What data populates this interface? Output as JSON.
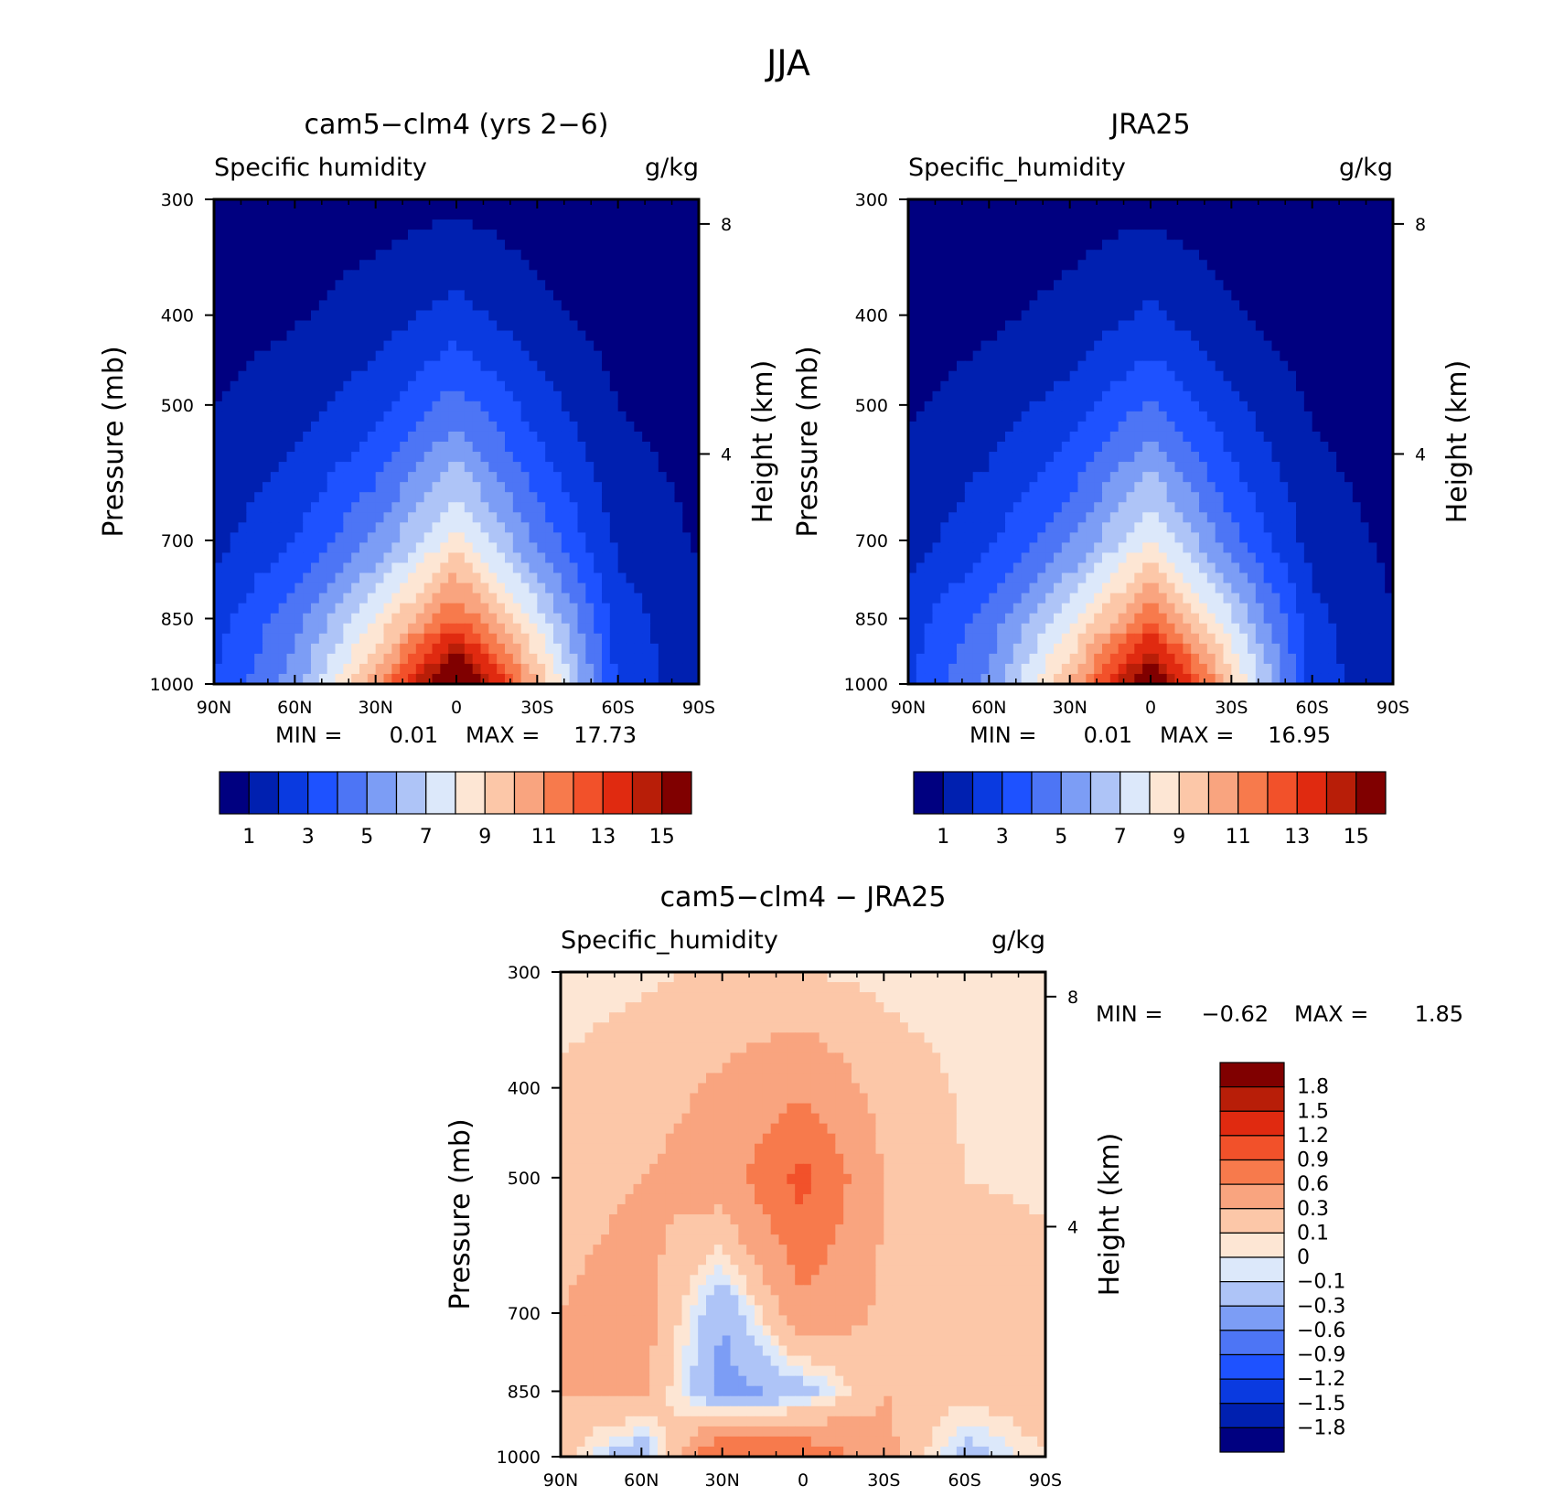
{
  "figure_title": "JJA",
  "chart_data": [
    {
      "type": "heatmap",
      "title": "cam5-clm4 (yrs 2-6)",
      "variable": "Specific humidity",
      "units": "g/kg",
      "ylabel": "Pressure (mb)",
      "right_label": "Height (km)",
      "x_ticks": [
        "90N",
        "60N",
        "30N",
        "0",
        "30S",
        "60S",
        "90S"
      ],
      "y_ticks": [
        "300",
        "400",
        "500",
        "700",
        "850",
        "1000"
      ],
      "right_ticks": [
        "8",
        "4"
      ],
      "min_label": "MIN =",
      "min_value": "0.01",
      "max_label": "MAX =",
      "max_value": "17.73",
      "colorbar_labels": [
        "1",
        "3",
        "5",
        "7",
        "9",
        "11",
        "13",
        "15"
      ],
      "field": {
        "lat": [
          90,
          60,
          30,
          0,
          -30,
          -60,
          -90
        ],
        "pressure": [
          300,
          400,
          500,
          700,
          850,
          1000
        ],
        "values": [
          [
            0.3,
            0.4,
            0.6,
            0.8,
            0.5,
            0.3,
            0.2
          ],
          [
            0.6,
            0.9,
            1.5,
            2.4,
            1.3,
            0.6,
            0.4
          ],
          [
            1.0,
            1.6,
            2.6,
            4.5,
            2.5,
            1.0,
            0.6
          ],
          [
            1.7,
            3.0,
            5.2,
            8.5,
            4.8,
            1.8,
            0.9
          ],
          [
            2.6,
            4.6,
            8.0,
            12.2,
            7.6,
            2.5,
            1.2
          ],
          [
            3.0,
            5.5,
            10.5,
            17.7,
            10.0,
            2.8,
            1.3
          ]
        ]
      }
    },
    {
      "type": "heatmap",
      "title": "JRA25",
      "variable": "Specific_humidity",
      "units": "g/kg",
      "ylabel": "Pressure (mb)",
      "right_label": "Height (km)",
      "x_ticks": [
        "90N",
        "60N",
        "30N",
        "0",
        "30S",
        "60S",
        "90S"
      ],
      "y_ticks": [
        "300",
        "400",
        "500",
        "700",
        "850",
        "1000"
      ],
      "right_ticks": [
        "8",
        "4"
      ],
      "min_label": "MIN =",
      "min_value": "0.01",
      "max_label": "MAX =",
      "max_value": "16.95",
      "colorbar_labels": [
        "1",
        "3",
        "5",
        "7",
        "9",
        "11",
        "13",
        "15"
      ],
      "field": {
        "lat": [
          90,
          60,
          30,
          0,
          -30,
          -60,
          -90
        ],
        "pressure": [
          300,
          400,
          500,
          700,
          850,
          1000
        ],
        "values": [
          [
            0.3,
            0.4,
            0.6,
            0.7,
            0.4,
            0.3,
            0.2
          ],
          [
            0.5,
            0.8,
            1.3,
            2.2,
            1.1,
            0.5,
            0.3
          ],
          [
            0.9,
            1.5,
            2.4,
            4.2,
            2.2,
            0.9,
            0.5
          ],
          [
            1.6,
            2.8,
            4.9,
            8.2,
            4.4,
            1.6,
            0.8
          ],
          [
            2.5,
            4.4,
            7.6,
            11.8,
            7.2,
            2.3,
            1.0
          ],
          [
            2.9,
            5.3,
            10.0,
            16.9,
            9.5,
            2.6,
            1.1
          ]
        ]
      }
    },
    {
      "type": "heatmap",
      "title": "cam5-clm4 - JRA25",
      "variable": "Specific_humidity",
      "units": "g/kg",
      "ylabel": "Pressure (mb)",
      "right_label": "Height (km)",
      "x_ticks": [
        "90N",
        "60N",
        "30N",
        "0",
        "30S",
        "60S",
        "90S"
      ],
      "y_ticks": [
        "300",
        "400",
        "500",
        "700",
        "850",
        "1000"
      ],
      "right_ticks": [
        "8",
        "4"
      ],
      "min_label": "MIN =",
      "min_value": "-0.62",
      "max_label": "MAX =",
      "max_value": "1.85",
      "colorbar_labels": [
        "1.8",
        "1.5",
        "1.2",
        "0.9",
        "0.6",
        "0.3",
        "0.1",
        "0",
        "-0.1",
        "-0.3",
        "-0.6",
        "-0.9",
        "-1.2",
        "-1.5",
        "-1.8"
      ],
      "field": {
        "lat": [
          90,
          60,
          30,
          0,
          -30,
          -60,
          -90
        ],
        "pressure": [
          300,
          400,
          500,
          700,
          850,
          1000
        ],
        "values": [
          [
            0.05,
            0.08,
            0.12,
            0.1,
            0.06,
            0.04,
            0.05
          ],
          [
            0.12,
            0.18,
            0.35,
            0.55,
            0.2,
            0.08,
            0.06
          ],
          [
            0.2,
            0.3,
            0.45,
            1.0,
            0.3,
            0.1,
            0.08
          ],
          [
            0.3,
            0.45,
            -0.3,
            0.5,
            0.25,
            0.2,
            0.15
          ],
          [
            0.3,
            0.35,
            -0.4,
            -0.2,
            0.3,
            0.15,
            0.25
          ],
          [
            0.15,
            -0.3,
            1.0,
            0.9,
            0.4,
            -0.2,
            0.1
          ]
        ]
      }
    }
  ]
}
